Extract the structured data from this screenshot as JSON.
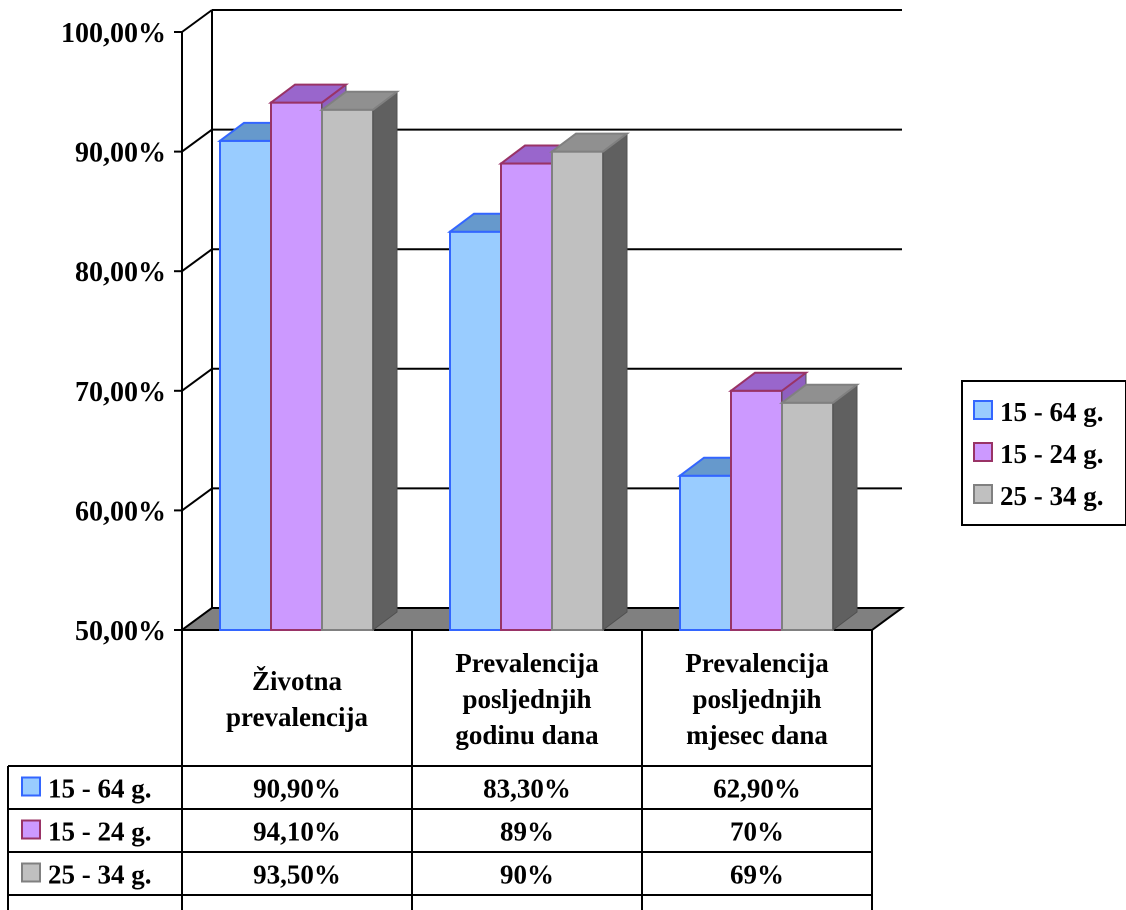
{
  "chart_data": {
    "type": "bar",
    "title": "",
    "xlabel": "",
    "ylabel": "",
    "ylim": [
      50,
      100
    ],
    "yticks": [
      50,
      60,
      70,
      80,
      90,
      100
    ],
    "ytick_labels": [
      "50,00%",
      "60,00%",
      "70,00%",
      "80,00%",
      "90,00%",
      "100,00%"
    ],
    "grid": true,
    "legend_position": "right",
    "categories": [
      [
        "Životna",
        "prevalencija"
      ],
      [
        "Prevalencija",
        "posljednjih",
        "godinu dana"
      ],
      [
        "Prevalencija",
        "posljednjih",
        "mjesec dana"
      ]
    ],
    "series": [
      {
        "name": "15 - 64 g.",
        "values": [
          90.9,
          83.3,
          62.9
        ],
        "labels": [
          "90,90%",
          "83,30%",
          "62,90%"
        ],
        "color": "#99CCFF",
        "top": "#6699CC",
        "side": "#5F8FBF",
        "stroke": "#3366FF"
      },
      {
        "name": "15 - 24 g.",
        "values": [
          94.1,
          89,
          70
        ],
        "labels": [
          "94,10%",
          "89%",
          "70%"
        ],
        "color": "#CC99FF",
        "top": "#9966CC",
        "side": "#8F5FBF",
        "stroke": "#993366"
      },
      {
        "name": "25 - 34 g.",
        "values": [
          93.5,
          90,
          69
        ],
        "labels": [
          "93,50%",
          "90%",
          "69%"
        ],
        "color": "#C0C0C0",
        "top": "#909090",
        "side": "#606060",
        "stroke": "#808080"
      }
    ]
  }
}
